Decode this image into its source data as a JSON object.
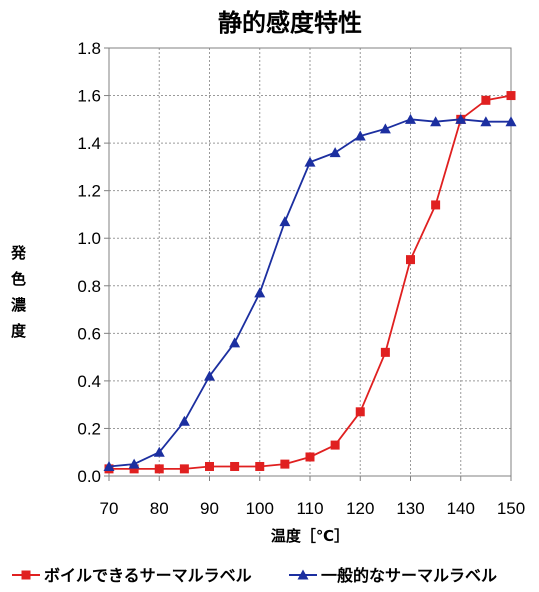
{
  "chart_data": {
    "type": "line",
    "title": "静的感度特性",
    "xlabel": "温度［℃］",
    "ylabel": "発色濃度",
    "xlim": [
      70,
      150
    ],
    "ylim": [
      0,
      1.8
    ],
    "x_ticks": [
      "70",
      "80",
      "90",
      "100",
      "110",
      "120",
      "130",
      "140",
      "150"
    ],
    "y_ticks": [
      "0.0",
      "0.2",
      "0.4",
      "0.6",
      "0.8",
      "1.0",
      "1.2",
      "1.4",
      "1.6",
      "1.8"
    ],
    "x": [
      70,
      75,
      80,
      85,
      90,
      95,
      100,
      105,
      110,
      115,
      120,
      125,
      130,
      135,
      140,
      145,
      150
    ],
    "series": [
      {
        "name": "ボイルできるサーマルラベル",
        "color": "#e02020",
        "marker": "square",
        "values": [
          0.03,
          0.03,
          0.03,
          0.03,
          0.04,
          0.04,
          0.04,
          0.05,
          0.08,
          0.13,
          0.27,
          0.52,
          0.91,
          1.14,
          1.5,
          1.58,
          1.6
        ]
      },
      {
        "name": "一般的なサーマルラベル",
        "color": "#1c2fa0",
        "marker": "triangle",
        "values": [
          0.04,
          0.05,
          0.1,
          0.23,
          0.42,
          0.56,
          0.77,
          1.07,
          1.32,
          1.36,
          1.43,
          1.46,
          1.5,
          1.49,
          1.5,
          1.49,
          1.49
        ]
      }
    ],
    "grid": true,
    "legend": "bottom"
  }
}
